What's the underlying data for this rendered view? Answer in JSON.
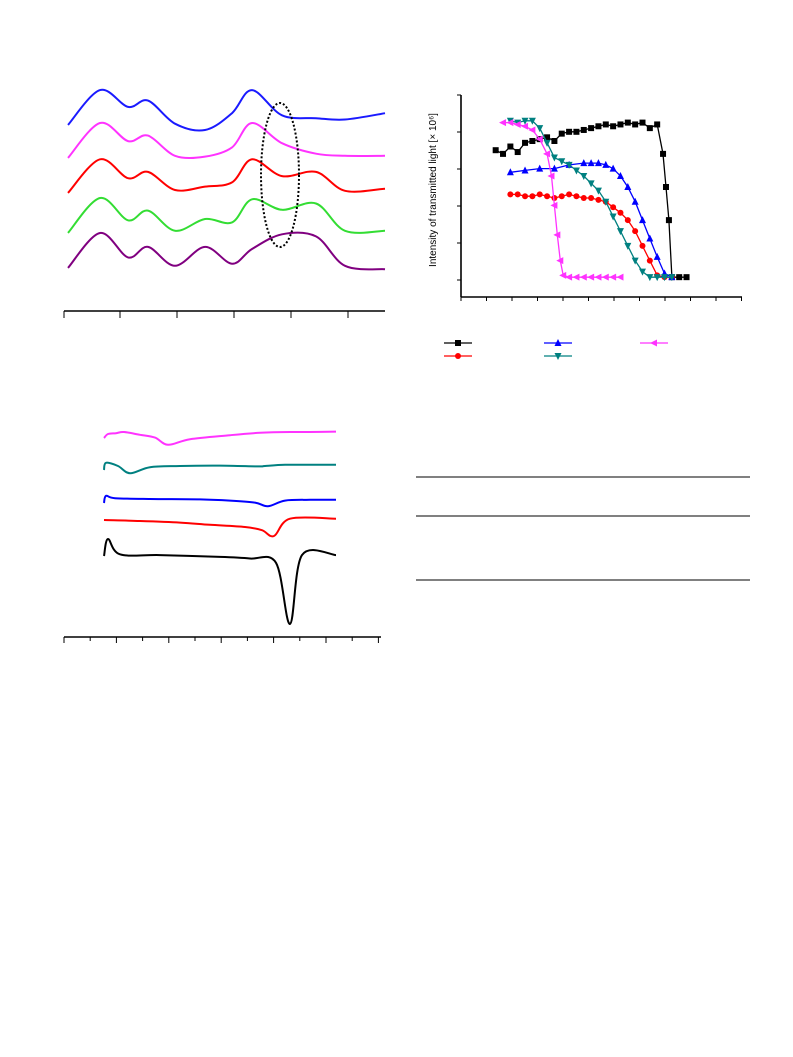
{
  "chart_data": [
    {
      "type": "line",
      "panel": "top-left",
      "series": [
        {
          "color": "#1a1aff",
          "values": [
            12,
            95,
            55,
            70,
            15,
            0,
            40,
            95,
            35,
            28,
            25,
            40
          ]
        },
        {
          "color": "#ff33ff",
          "values": [
            5,
            88,
            45,
            58,
            10,
            8,
            30,
            88,
            40,
            15,
            10,
            10
          ]
        },
        {
          "color": "#ff0000",
          "values": [
            5,
            85,
            40,
            55,
            12,
            20,
            30,
            85,
            45,
            55,
            10,
            15
          ]
        },
        {
          "color": "#33dd33",
          "values": [
            5,
            88,
            35,
            58,
            10,
            38,
            30,
            85,
            60,
            75,
            10,
            10
          ]
        },
        {
          "color": "#800080",
          "values": [
            5,
            88,
            30,
            55,
            10,
            55,
            15,
            50,
            85,
            80,
            10,
            2
          ]
        }
      ],
      "annotation": "dotted-ellipse"
    },
    {
      "type": "scatter",
      "panel": "top-right",
      "ylabel": "Intensity of transmitted light [× 10⁶]",
      "xlim": [
        0,
        16
      ],
      "ylim": [
        0,
        5
      ],
      "series": [
        {
          "color": "#000000",
          "marker": "square",
          "x": [
            1.0,
            1.5,
            2.0,
            2.5,
            3.0,
            3.5,
            4.0,
            4.5,
            5.0,
            5.5,
            6.0,
            6.5,
            7.0,
            7.5,
            8.0,
            8.5,
            9.0,
            9.5,
            10.0,
            10.5,
            11.0,
            11.5,
            12.0,
            12.4,
            12.6,
            12.8,
            13.0,
            13.5,
            14.0
          ],
          "y": [
            3.5,
            3.4,
            3.6,
            3.45,
            3.7,
            3.75,
            3.8,
            3.85,
            3.75,
            3.95,
            4.0,
            4.0,
            4.05,
            4.1,
            4.15,
            4.2,
            4.15,
            4.2,
            4.25,
            4.2,
            4.25,
            4.1,
            4.2,
            3.4,
            2.5,
            1.6,
            0.05,
            0.05,
            0.05
          ]
        },
        {
          "color": "#ff0000",
          "marker": "circle",
          "x": [
            2.0,
            2.5,
            3.0,
            3.5,
            4.0,
            4.5,
            5.0,
            5.5,
            6.0,
            6.5,
            7.0,
            7.5,
            8.0,
            8.5,
            9.0,
            9.5,
            10.0,
            10.5,
            11.0,
            11.5,
            12.0,
            12.5,
            13.0
          ],
          "y": [
            2.3,
            2.3,
            2.25,
            2.25,
            2.3,
            2.25,
            2.2,
            2.25,
            2.3,
            2.25,
            2.2,
            2.2,
            2.15,
            2.1,
            1.95,
            1.8,
            1.6,
            1.3,
            0.9,
            0.5,
            0.1,
            0.05,
            0.05
          ]
        },
        {
          "color": "#0000ff",
          "marker": "triangle-up",
          "x": [
            2.0,
            3.0,
            4.0,
            5.0,
            6.0,
            7.0,
            7.5,
            8.0,
            8.5,
            9.0,
            9.5,
            10.0,
            10.5,
            11.0,
            11.5,
            12.0,
            12.5,
            13.0
          ],
          "y": [
            2.9,
            2.95,
            3.0,
            3.0,
            3.1,
            3.15,
            3.15,
            3.15,
            3.1,
            3.0,
            2.8,
            2.5,
            2.1,
            1.6,
            1.1,
            0.6,
            0.15,
            0.05
          ]
        },
        {
          "color": "#008080",
          "marker": "triangle-down",
          "x": [
            2.0,
            2.5,
            3.0,
            3.5,
            4.0,
            4.5,
            5.0,
            5.5,
            6.0,
            6.5,
            7.0,
            7.5,
            8.0,
            8.5,
            9.0,
            9.5,
            10.0,
            10.5,
            11.0,
            11.5,
            12.0,
            12.5,
            13.0
          ],
          "y": [
            4.3,
            4.25,
            4.3,
            4.3,
            4.1,
            3.7,
            3.3,
            3.2,
            3.1,
            2.95,
            2.8,
            2.6,
            2.4,
            2.1,
            1.7,
            1.3,
            0.9,
            0.5,
            0.2,
            0.05,
            0.05,
            0.05,
            0.05
          ]
        },
        {
          "color": "#ff33ff",
          "marker": "triangle-left",
          "x": [
            1.5,
            2.0,
            2.5,
            3.0,
            3.5,
            4.0,
            4.5,
            4.8,
            5.0,
            5.2,
            5.4,
            5.6,
            6.0,
            6.5,
            7.0,
            7.5,
            8.0,
            8.5,
            9.0,
            9.5
          ],
          "y": [
            4.25,
            4.25,
            4.2,
            4.15,
            4.05,
            3.8,
            3.4,
            2.8,
            2.0,
            1.2,
            0.5,
            0.1,
            0.05,
            0.05,
            0.05,
            0.05,
            0.05,
            0.05,
            0.05,
            0.05
          ]
        }
      ]
    },
    {
      "type": "line",
      "panel": "bottom-left",
      "series": [
        {
          "color": "#ff33ff",
          "values": [
            0,
            1,
            1.2,
            1.5,
            0.8,
            0.1,
            -1.7,
            -0.3,
            0.7,
            1.3,
            1.5,
            1.5,
            1.6
          ]
        },
        {
          "color": "#008080",
          "values": [
            0,
            1.8,
            1.0,
            -0.8,
            0.7,
            1.0,
            1.1,
            0.9,
            1.0,
            1.3,
            1.3,
            1.3
          ]
        },
        {
          "color": "#0000ff",
          "values": [
            0,
            1.8,
            1.2,
            1.0,
            0.9,
            0.6,
            0.1,
            -0.8,
            0.6,
            0.8,
            0.8
          ]
        },
        {
          "color": "#ff0000",
          "values": [
            0,
            -0.3,
            -0.8,
            -1.5,
            -2.2,
            -3.2,
            -5.0,
            0.4,
            0.4
          ]
        },
        {
          "color": "#000000",
          "values": [
            0,
            2.0,
            0.2,
            0.1,
            -0.1,
            -0.3,
            -0.8,
            -8.0,
            0.1,
            0.1
          ]
        }
      ]
    },
    {
      "type": "table",
      "panel": "bottom-right",
      "rows": []
    }
  ]
}
